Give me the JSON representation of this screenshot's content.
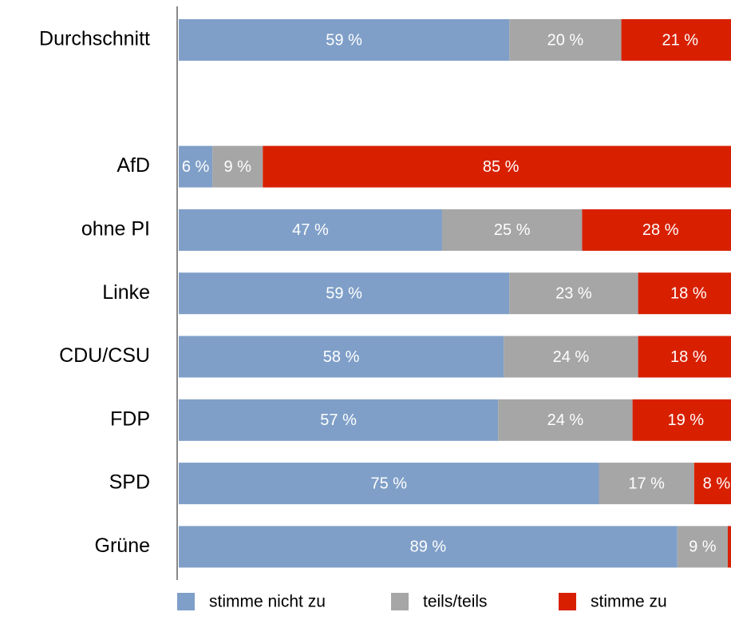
{
  "chart_data": {
    "type": "stacked-bar-horizontal",
    "categories": [
      "Durchschnitt",
      null,
      "AfD",
      "ohne PI",
      "Linke",
      "CDU/CSU",
      "FDP",
      "SPD",
      "Grüne"
    ],
    "xlim": [
      0,
      100
    ],
    "series": [
      {
        "name": "stimme nicht zu",
        "color": "#7f9fc8",
        "values": [
          59,
          null,
          6,
          47,
          59,
          58,
          57,
          75,
          89
        ],
        "value_labels": [
          "59 %",
          null,
          "6 %",
          "47 %",
          "59 %",
          "58 %",
          "57 %",
          "75 %",
          "89 %"
        ]
      },
      {
        "name": "teils/teils",
        "color": "#a6a6a6",
        "values": [
          20,
          null,
          9,
          25,
          23,
          24,
          24,
          17,
          9
        ],
        "value_labels": [
          "20 %",
          null,
          "9 %",
          "25 %",
          "23 %",
          "24 %",
          "24 %",
          "17 %",
          "9 %"
        ]
      },
      {
        "name": "stimme zu",
        "color": "#d82000",
        "values": [
          21,
          null,
          85,
          28,
          18,
          18,
          19,
          8,
          2
        ],
        "value_labels": [
          "21 %",
          null,
          "85 %",
          "28 %",
          "18 %",
          "18 %",
          "19 %",
          "8 %",
          null
        ]
      }
    ],
    "legend": "bottom"
  }
}
